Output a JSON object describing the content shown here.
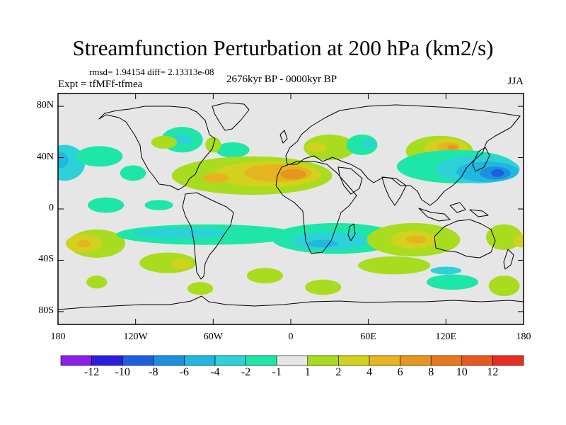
{
  "chart_data": {
    "type": "heatmap",
    "title": "Streamfunction Perturbation at 200 hPa (km2/s)",
    "stats": "rmsd= 1.94154 diff= 2.13313e-08",
    "experiment": "Expt = tfMFf-tfmea",
    "period": "2676kyr BP - 0000kyr BP",
    "season": "JJA",
    "xlim": [
      -180,
      180
    ],
    "ylim": [
      -90,
      90
    ],
    "lat_ticks": [
      {
        "value": 80,
        "label": "80N"
      },
      {
        "value": 40,
        "label": "40N"
      },
      {
        "value": 0,
        "label": "0"
      },
      {
        "value": -40,
        "label": "40S"
      },
      {
        "value": -80,
        "label": "80S"
      }
    ],
    "lon_ticks": [
      {
        "value": -180,
        "label": "180"
      },
      {
        "value": -120,
        "label": "120W"
      },
      {
        "value": -60,
        "label": "60W"
      },
      {
        "value": 0,
        "label": "0"
      },
      {
        "value": 60,
        "label": "60E"
      },
      {
        "value": 120,
        "label": "120E"
      },
      {
        "value": 180,
        "label": "180"
      }
    ],
    "colorbar": {
      "colors": [
        "#8a1fe8",
        "#2c1ee0",
        "#1e5fe0",
        "#1e8fe0",
        "#1eb8e0",
        "#2cd2d8",
        "#1ee6a8",
        "#e6e6e6",
        "#a8dc1e",
        "#d2d21e",
        "#e6b41e",
        "#e6961e",
        "#e6781e",
        "#e65a1e",
        "#e62d1e"
      ],
      "levels": [
        -12,
        -10,
        -8,
        -6,
        -4,
        -2,
        -1,
        1,
        2,
        4,
        6,
        8,
        10,
        12
      ]
    },
    "anomalies": [
      {
        "lon": -175,
        "lat": 36,
        "rlon": 16,
        "rlat": 14,
        "value": -2
      },
      {
        "lon": -178,
        "lat": 38,
        "rlon": 6,
        "rlat": 6,
        "value": -4
      },
      {
        "lon": -148,
        "lat": 41,
        "rlon": 18,
        "rlat": 8,
        "value": -1
      },
      {
        "lon": -122,
        "lat": 28,
        "rlon": 10,
        "rlat": 6,
        "value": -1
      },
      {
        "lon": -143,
        "lat": 3,
        "rlon": 14,
        "rlat": 6,
        "value": -1
      },
      {
        "lon": -102,
        "lat": 3,
        "rlon": 11,
        "rlat": 4,
        "value": -1
      },
      {
        "lon": -84,
        "lat": 54,
        "rlon": 16,
        "rlat": 10,
        "value": -1
      },
      {
        "lon": -84,
        "lat": 54,
        "rlon": 8,
        "rlat": 4,
        "value": -2
      },
      {
        "lon": -45,
        "lat": 46,
        "rlon": 13,
        "rlat": 6,
        "value": -1
      },
      {
        "lon": -60,
        "lat": 50,
        "rlon": 6,
        "rlat": 6,
        "value": 1
      },
      {
        "lon": -98,
        "lat": 52,
        "rlon": 10,
        "rlat": 5,
        "value": 1
      },
      {
        "lon": -30,
        "lat": 26,
        "rlon": 62,
        "rlat": 15,
        "value": 1
      },
      {
        "lon": -18,
        "lat": 27,
        "rlon": 42,
        "rlat": 10,
        "value": 2
      },
      {
        "lon": -10,
        "lat": 28,
        "rlon": 26,
        "rlat": 7,
        "value": 4
      },
      {
        "lon": 2,
        "lat": 27,
        "rlon": 10,
        "rlat": 4,
        "value": 6
      },
      {
        "lon": -58,
        "lat": 24,
        "rlon": 10,
        "rlat": 4,
        "value": 4
      },
      {
        "lon": 30,
        "lat": 48,
        "rlon": 20,
        "rlat": 10,
        "value": 1
      },
      {
        "lon": 20,
        "lat": 48,
        "rlon": 8,
        "rlat": 4,
        "value": 2
      },
      {
        "lon": 55,
        "lat": 50,
        "rlon": 12,
        "rlat": 8,
        "value": -1
      },
      {
        "lon": 60,
        "lat": 51,
        "rlon": 5,
        "rlat": 3,
        "value": -2
      },
      {
        "lon": 115,
        "lat": 45,
        "rlon": 26,
        "rlat": 12,
        "value": 1
      },
      {
        "lon": 120,
        "lat": 47,
        "rlon": 17,
        "rlat": 8,
        "value": 2
      },
      {
        "lon": 122,
        "lat": 48,
        "rlon": 9,
        "rlat": 4,
        "value": 4
      },
      {
        "lon": 125,
        "lat": 48,
        "rlon": 4,
        "rlat": 2,
        "value": 6
      },
      {
        "lon": 128,
        "lat": 33,
        "rlon": 46,
        "rlat": 13,
        "value": -1
      },
      {
        "lon": 145,
        "lat": 31,
        "rlon": 32,
        "rlat": 11,
        "value": -2
      },
      {
        "lon": 152,
        "lat": 29,
        "rlon": 24,
        "rlat": 8,
        "value": -4
      },
      {
        "lon": 158,
        "lat": 28,
        "rlon": 12,
        "rlat": 5,
        "value": -6
      },
      {
        "lon": 160,
        "lat": 28,
        "rlon": 5,
        "rlat": 3,
        "value": -8
      },
      {
        "lon": -150,
        "lat": -27,
        "rlon": 22,
        "rlat": 11,
        "value": 1
      },
      {
        "lon": -160,
        "lat": -27,
        "rlon": 14,
        "rlat": 7,
        "value": 2
      },
      {
        "lon": -160,
        "lat": -27,
        "rlon": 5,
        "rlat": 3,
        "value": 4
      },
      {
        "lon": -65,
        "lat": -20,
        "rlon": 70,
        "rlat": 8,
        "value": -1
      },
      {
        "lon": -85,
        "lat": -19,
        "rlon": 36,
        "rlat": 4,
        "value": -2
      },
      {
        "lon": 35,
        "lat": -23,
        "rlon": 50,
        "rlat": 12,
        "value": -1
      },
      {
        "lon": 30,
        "lat": -25,
        "rlon": 30,
        "rlat": 7,
        "value": -2
      },
      {
        "lon": 25,
        "lat": -27,
        "rlon": 12,
        "rlat": 3,
        "value": -4
      },
      {
        "lon": -95,
        "lat": -42,
        "rlon": 22,
        "rlat": 8,
        "value": 1
      },
      {
        "lon": -85,
        "lat": -43,
        "rlon": 8,
        "rlat": 4,
        "value": 2
      },
      {
        "lon": -70,
        "lat": -62,
        "rlon": 10,
        "rlat": 5,
        "value": 1
      },
      {
        "lon": -150,
        "lat": -57,
        "rlon": 8,
        "rlat": 5,
        "value": 1
      },
      {
        "lon": -20,
        "lat": -52,
        "rlon": 14,
        "rlat": 6,
        "value": 1
      },
      {
        "lon": 25,
        "lat": -61,
        "rlon": 14,
        "rlat": 6,
        "value": 1
      },
      {
        "lon": 80,
        "lat": -44,
        "rlon": 28,
        "rlat": 7,
        "value": 1
      },
      {
        "lon": 95,
        "lat": -24,
        "rlon": 36,
        "rlat": 13,
        "value": 1
      },
      {
        "lon": 95,
        "lat": -24,
        "rlon": 18,
        "rlat": 7,
        "value": 2
      },
      {
        "lon": 97,
        "lat": -24,
        "rlon": 8,
        "rlat": 3,
        "value": 4
      },
      {
        "lon": 125,
        "lat": -57,
        "rlon": 20,
        "rlat": 6,
        "value": -1
      },
      {
        "lon": 120,
        "lat": -48,
        "rlon": 12,
        "rlat": 3,
        "value": -2
      },
      {
        "lon": 165,
        "lat": -22,
        "rlon": 14,
        "rlat": 10,
        "value": 1
      },
      {
        "lon": 178,
        "lat": -25,
        "rlon": 6,
        "rlat": 5,
        "value": 2
      },
      {
        "lon": 165,
        "lat": -60,
        "rlon": 12,
        "rlat": 8,
        "value": 1
      }
    ]
  }
}
